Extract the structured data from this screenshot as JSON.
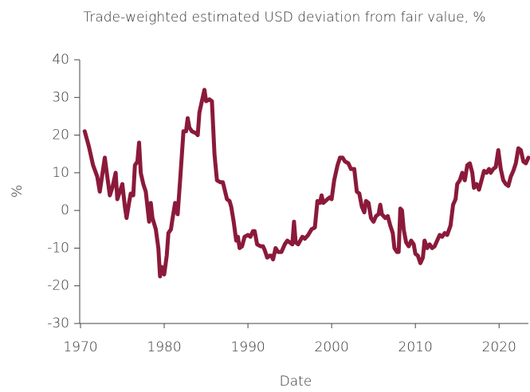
{
  "chart_data": {
    "type": "line",
    "title": "Trade-weighted estimated USD deviation from fair value, %",
    "x_label": "Date",
    "y_label": "%",
    "xlim": [
      1970,
      2023.5
    ],
    "xticks": [
      1970,
      1980,
      1990,
      2000,
      2010,
      2020
    ],
    "ylim": [
      -30,
      40
    ],
    "yticks": [
      -30,
      -20,
      -10,
      0,
      10,
      20,
      30,
      40
    ],
    "series": [
      {
        "name": "USD deviation",
        "color": "#8b1a3a",
        "x": [
          1970.5,
          1971,
          1971.5,
          1972,
          1972.3,
          1972.7,
          1972.9,
          1973.2,
          1973.5,
          1973.8,
          1974.2,
          1974.4,
          1974.7,
          1975,
          1975.3,
          1975.5,
          1975.8,
          1976,
          1976.3,
          1976.5,
          1976.8,
          1977,
          1977.2,
          1977.5,
          1977.8,
          1978,
          1978.2,
          1978.4,
          1978.6,
          1979,
          1979.3,
          1979.5,
          1979.7,
          1980,
          1980.3,
          1980.5,
          1980.8,
          1981,
          1981.3,
          1981.6,
          1981.9,
          1982.3,
          1982.6,
          1982.8,
          1983,
          1983.3,
          1983.8,
          1984,
          1984.2,
          1984.5,
          1984.8,
          1985,
          1985.4,
          1985.7,
          1986,
          1986.3,
          1986.7,
          1987,
          1987.5,
          1987.8,
          1988,
          1988.3,
          1988.6,
          1988.8,
          1989,
          1989.3,
          1989.6,
          1990,
          1990.3,
          1990.6,
          1990.8,
          1991.1,
          1991.5,
          1991.8,
          1992,
          1992.3,
          1992.6,
          1992.8,
          1993,
          1993.3,
          1993.6,
          1994,
          1994.4,
          1994.7,
          1995,
          1995.3,
          1995.5,
          1995.7,
          1996,
          1996.5,
          1996.8,
          1997.2,
          1997.6,
          1998,
          1998.3,
          1998.6,
          1998.8,
          1999,
          1999.5,
          1999.8,
          2000,
          2000.3,
          2000.7,
          2001,
          2001.3,
          2001.6,
          2002,
          2002.3,
          2002.7,
          2003,
          2003.3,
          2003.6,
          2003.9,
          2004.1,
          2004.4,
          2004.7,
          2005,
          2005.3,
          2005.6,
          2005.8,
          2006,
          2006.4,
          2006.7,
          2007,
          2007.3,
          2007.5,
          2007.8,
          2008,
          2008.2,
          2008.4,
          2008.6,
          2008.9,
          2009.2,
          2009.5,
          2009.8,
          2010,
          2010.3,
          2010.6,
          2010.9,
          2011.1,
          2011.4,
          2011.7,
          2012,
          2012.3,
          2012.6,
          2012.9,
          2013.2,
          2013.5,
          2013.8,
          2014.2,
          2014.5,
          2014.8,
          2015,
          2015.3,
          2015.6,
          2015.9,
          2016.2,
          2016.5,
          2016.8,
          2017,
          2017.3,
          2017.6,
          2017.9,
          2018.2,
          2018.5,
          2018.8,
          2019,
          2019.3,
          2019.6,
          2019.9,
          2020.2,
          2020.5,
          2020.8,
          2021.1,
          2021.4,
          2021.7,
          2022,
          2022.3,
          2022.6,
          2022.9,
          2023.2,
          2023.5
        ],
        "values": [
          21,
          17,
          12,
          9,
          5,
          11,
          14,
          9,
          4,
          6,
          10,
          3,
          5,
          7,
          1,
          -2,
          2,
          4.5,
          4,
          12,
          13,
          18,
          10,
          7,
          5,
          1,
          -3,
          2,
          -2,
          -5,
          -10,
          -17.5,
          -15,
          -17,
          -12,
          -6,
          -5,
          -2,
          2,
          -1,
          8,
          21,
          21,
          24.5,
          22,
          21,
          20.5,
          20,
          26,
          29,
          32,
          29,
          29.5,
          29,
          15,
          8,
          7.5,
          7.5,
          3,
          2.5,
          1,
          -3,
          -8,
          -7,
          -10,
          -9.5,
          -7,
          -6.5,
          -7,
          -5.5,
          -5.5,
          -9,
          -9.5,
          -9.5,
          -10.5,
          -12.5,
          -12,
          -12,
          -13,
          -10,
          -11,
          -11,
          -9,
          -8,
          -8.5,
          -9,
          -3,
          -8.5,
          -9,
          -7,
          -7.5,
          -6.5,
          -5,
          -4.5,
          2.5,
          2,
          4,
          2,
          3,
          3.5,
          3,
          8,
          12,
          14,
          14,
          13,
          12.5,
          11,
          11,
          5,
          4.5,
          1,
          -0.5,
          2.5,
          2,
          -2,
          -3,
          -1.5,
          -1,
          1.5,
          -1,
          -2,
          -1.5,
          -4,
          -6,
          -10,
          -11,
          -11,
          0.5,
          0,
          -5,
          -8.5,
          -9.5,
          -8,
          -9,
          -11.5,
          -12,
          -14,
          -12.5,
          -8,
          -10,
          -9,
          -10,
          -9.5,
          -8,
          -6.5,
          -7,
          -6,
          -6.5,
          -4,
          1.5,
          3,
          7,
          8,
          10,
          8,
          12,
          12.5,
          10,
          6,
          7,
          5.5,
          8,
          10.5,
          10,
          11,
          10,
          11,
          11.5,
          16,
          11,
          8,
          7,
          6.5,
          9,
          10.5,
          12.5,
          16.5,
          16,
          13,
          12.5,
          14
        ]
      }
    ]
  }
}
